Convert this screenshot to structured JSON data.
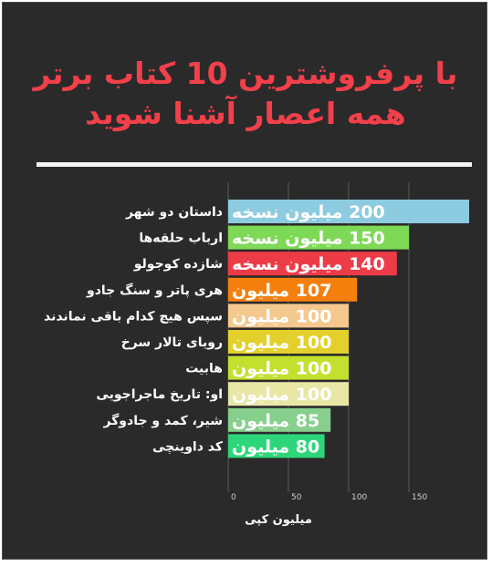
{
  "chart_data": {
    "type": "bar",
    "orientation": "horizontal",
    "title": "با پرفروشترین 10 کتاب برتر همه اعصار آشنا شوید",
    "title_lines": [
      "با پرفروشترین 10 کتاب برتر",
      "همه اعصار آشنا شوید"
    ],
    "xlabel": "میلیون کپی",
    "ylabel": "",
    "xlim": [
      0,
      200
    ],
    "xticks": [
      0,
      50,
      100,
      150
    ],
    "grid": true,
    "categories": [
      "داستان دو شهر",
      "ارباب حلقه‌ها",
      "شازده کوجولو",
      "هری پاتر و سنگ جادو",
      "سپس هیچ کدام باقی نماندند",
      "رویای تالار سرخ",
      "هابیت",
      "او: تاریخ ماجراجویی",
      "شیر، کمد و جادوگر",
      "کد داوینچی"
    ],
    "values": [
      200,
      150,
      140,
      107,
      100,
      100,
      100,
      100,
      85,
      80
    ],
    "data_labels": [
      "200 میلیون نسخه",
      "150 میلیون نسخه",
      "140 میلیون نسخه",
      "107 میلیون",
      "100 میلیون",
      "100 میلیون",
      "100 میلیون",
      "100 میلیون",
      "85 میلیون",
      "80 میلیون"
    ],
    "colors": [
      "#8ccbe0",
      "#7ed957",
      "#ee3b48",
      "#f57f0d",
      "#f5c88e",
      "#e3d02a",
      "#c4e02e",
      "#e9e7a6",
      "#87cf8d",
      "#2ed67a"
    ]
  }
}
